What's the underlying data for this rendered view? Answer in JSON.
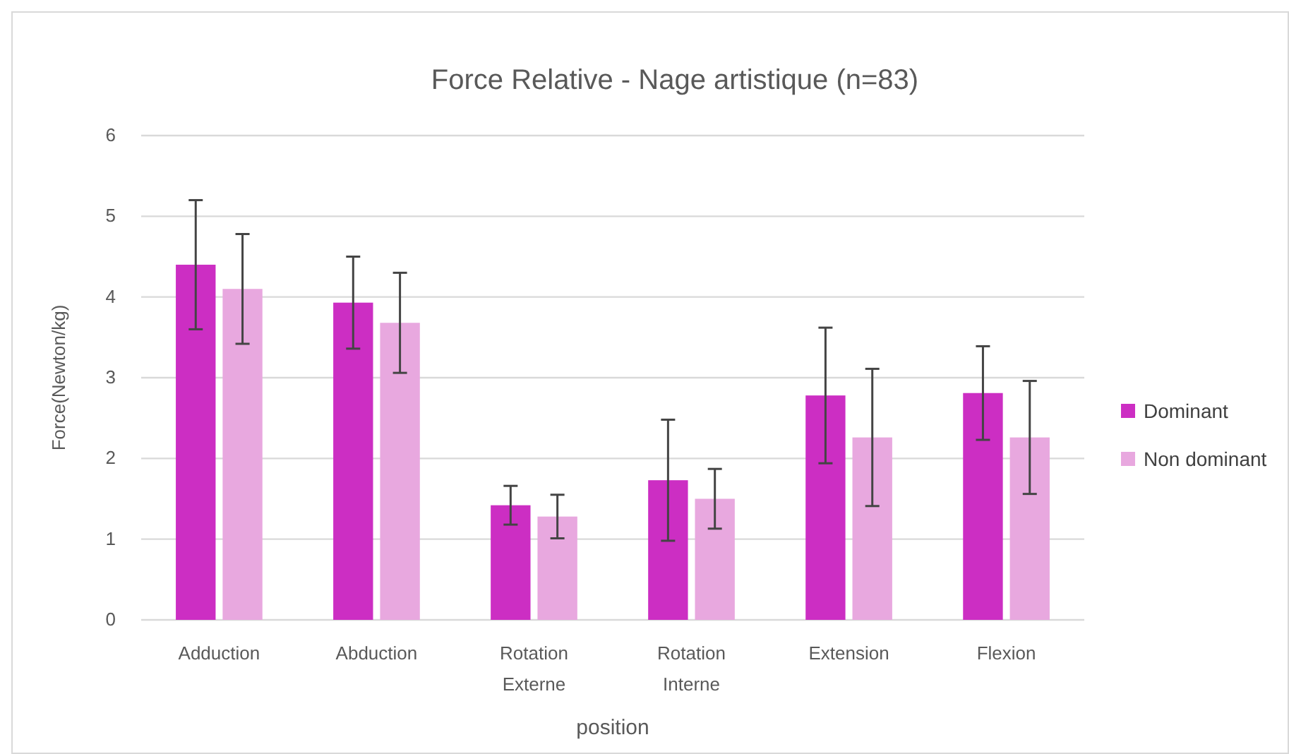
{
  "chart_data": {
    "type": "bar",
    "title": "Force Relative - Nage artistique (n=83)",
    "xlabel": "position",
    "ylabel": "Force(Newton/kg)",
    "categories": [
      "Adduction",
      "Abduction",
      "Rotation Externe",
      "Rotation Interne",
      "Extension",
      "Flexion"
    ],
    "series": [
      {
        "name": "Dominant",
        "color": "#cc2ec3",
        "values": [
          4.4,
          3.93,
          1.42,
          1.73,
          2.78,
          2.81
        ],
        "errors": [
          0.8,
          0.57,
          0.24,
          0.75,
          0.84,
          0.58
        ]
      },
      {
        "name": "Non dominant",
        "color": "#e8a8df",
        "values": [
          4.1,
          3.68,
          1.28,
          1.5,
          2.26,
          2.26
        ],
        "errors": [
          0.68,
          0.62,
          0.27,
          0.37,
          0.85,
          0.7
        ]
      }
    ],
    "ylim": [
      0,
      6
    ],
    "yticks": [
      0,
      1,
      2,
      3,
      4,
      5,
      6
    ],
    "grid": "y",
    "legend": "right"
  }
}
